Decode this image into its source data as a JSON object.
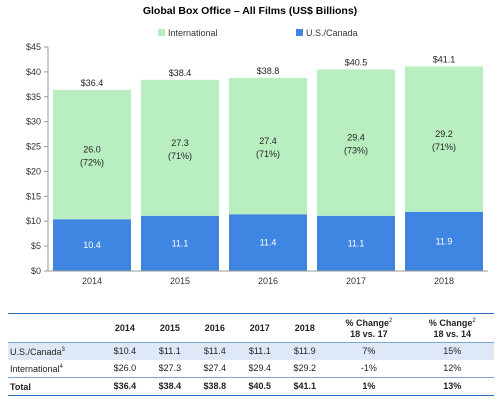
{
  "colors": {
    "international": "#b9efc0",
    "us_canada": "#3f86e3",
    "axis": "#999999",
    "table_rule": "#2f6fbf",
    "table_band": "#dfe8f6"
  },
  "chart_data": {
    "type": "bar",
    "stacked": true,
    "title": "Global Box Office – All Films (US$ Billions)",
    "categories": [
      "2014",
      "2015",
      "2016",
      "2017",
      "2018"
    ],
    "series": [
      {
        "name": "U.S./Canada",
        "values": [
          10.4,
          11.1,
          11.4,
          11.1,
          11.9
        ],
        "labels": [
          "10.4",
          "11.1",
          "11.4",
          "11.1",
          "11.9"
        ]
      },
      {
        "name": "International",
        "values": [
          26.0,
          27.3,
          27.4,
          29.4,
          29.2
        ],
        "labels": [
          "26.0",
          "27.3",
          "27.4",
          "29.4",
          "29.2"
        ],
        "pct_labels": [
          "(72%)",
          "(71%)",
          "(71%)",
          "(73%)",
          "(71%)"
        ]
      }
    ],
    "totals": [
      "$36.4",
      "$38.4",
      "$38.8",
      "$40.5",
      "$41.1"
    ],
    "total_values": [
      36.4,
      38.4,
      38.8,
      40.5,
      41.1
    ],
    "ylim": [
      0,
      45
    ],
    "yticks": [
      0,
      5,
      10,
      15,
      20,
      25,
      30,
      35,
      40,
      45
    ],
    "ytick_labels": [
      "$0",
      "$5",
      "$10",
      "$15",
      "$20",
      "$25",
      "$30",
      "$35",
      "$40",
      "$45"
    ],
    "legend": [
      "International",
      "U.S./Canada"
    ],
    "legend_position": "top",
    "xlabel": "",
    "ylabel": "",
    "grid": false
  },
  "table": {
    "headers": [
      "2014",
      "2015",
      "2016",
      "2017",
      "2018"
    ],
    "change_header_1": {
      "line1": "% Change",
      "sup": "2",
      "line2": "18 vs. 17"
    },
    "change_header_2": {
      "line1": "% Change",
      "sup": "2",
      "line2": "18 vs. 14"
    },
    "rows": [
      {
        "label": "U.S./Canada",
        "sup": "3",
        "cells": [
          "$10.4",
          "$11.1",
          "$11.4",
          "$11.1",
          "$11.9",
          "7%",
          "15%"
        ]
      },
      {
        "label": "International",
        "sup": "4",
        "cells": [
          "$26.0",
          "$27.3",
          "$27.4",
          "$29.4",
          "$29.2",
          "-1%",
          "12%"
        ]
      },
      {
        "label": "Total",
        "sup": "",
        "cells": [
          "$36.4",
          "$38.4",
          "$38.8",
          "$40.5",
          "$41.1",
          "1%",
          "13%"
        ]
      }
    ]
  }
}
